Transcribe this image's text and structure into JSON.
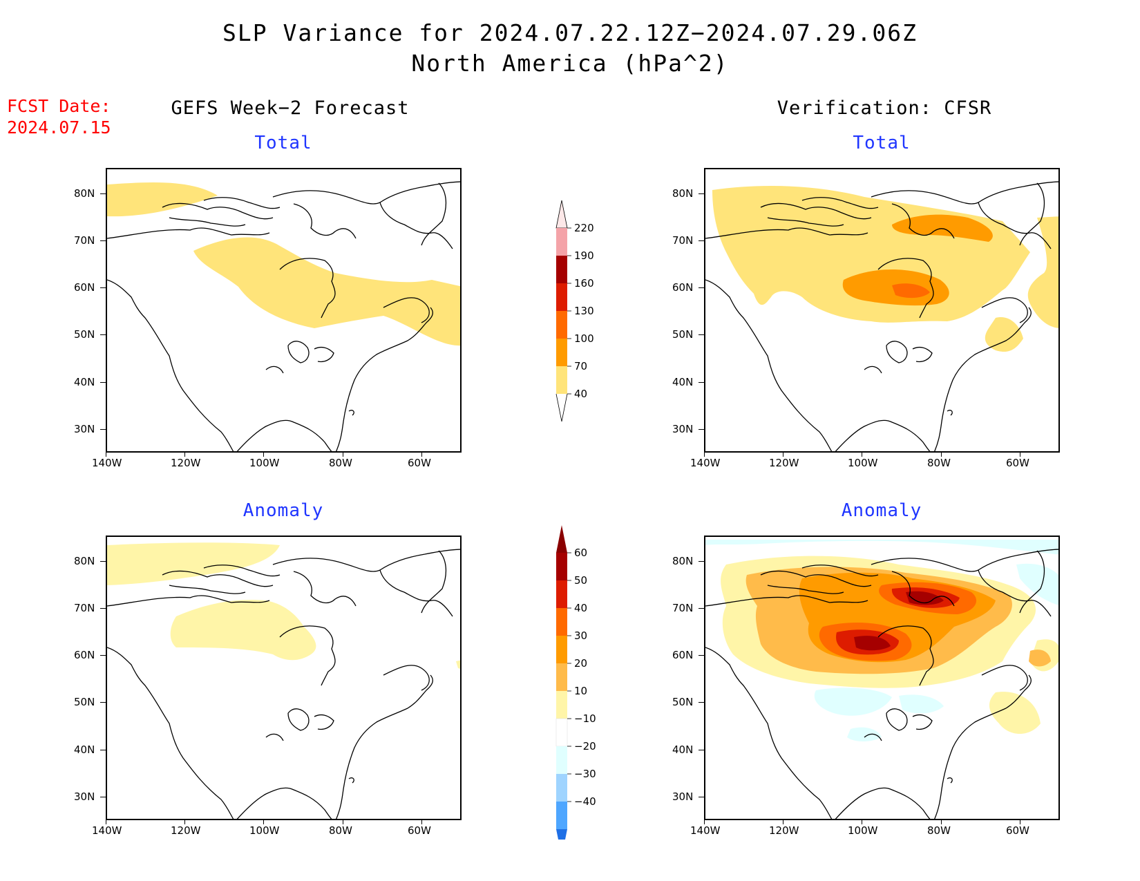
{
  "header": {
    "title": "SLP Variance for 2024.07.22.12Z−2024.07.29.06Z",
    "subtitle": "North America (hPa^2)",
    "fcst_label": "FCST Date:",
    "fcst_date": "2024.07.15"
  },
  "columns": {
    "left": "GEFS Week−2 Forecast",
    "right": "Verification: CFSR"
  },
  "panels": [
    {
      "id": "forecast-total",
      "subtitle": "Total"
    },
    {
      "id": "verif-total",
      "subtitle": "Total"
    },
    {
      "id": "forecast-anomaly",
      "subtitle": "Anomaly"
    },
    {
      "id": "verif-anomaly",
      "subtitle": "Anomaly"
    }
  ],
  "axes": {
    "lat_labels": [
      "80N",
      "70N",
      "60N",
      "50N",
      "40N",
      "30N"
    ],
    "lon_labels": [
      "140W",
      "120W",
      "100W",
      "80W",
      "60W"
    ]
  },
  "colorbars": {
    "total": {
      "labels": [
        "220",
        "190",
        "160",
        "130",
        "100",
        "70",
        "40"
      ],
      "colors": [
        "#f4a3a8",
        "#a50000",
        "#dd1c00",
        "#ff6a00",
        "#ff9b00",
        "#ffe47a"
      ]
    },
    "anomaly": {
      "labels": [
        "60",
        "50",
        "40",
        "30",
        "20",
        "10",
        "−10",
        "−20",
        "−30",
        "−40"
      ],
      "colors": [
        "#a50000",
        "#dd1c00",
        "#ff6a00",
        "#ff9b00",
        "#ffbb4a",
        "#fff5a8",
        "#ffffff",
        "#e0ffff",
        "#9fd4ff",
        "#4ea6ff",
        "#1e6fe6"
      ]
    }
  },
  "palette": {
    "light_yellow": "#fff5a8",
    "yellow": "#ffe47a",
    "light_orange": "#ffbb4a",
    "orange": "#ff9b00",
    "dark_orange": "#ff6a00",
    "red": "#dd1c00",
    "dark_red": "#a50000",
    "light_cyan": "#e0ffff"
  }
}
